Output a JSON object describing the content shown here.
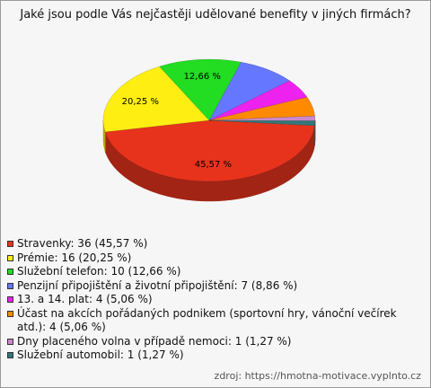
{
  "chart_data": {
    "type": "pie",
    "title": "Jaké jsou podle Vás nejčastěji udělované benefity v jiných firmách?",
    "categories": [
      "Stravenky: 36 (45,57 %)",
      "Prémie: 16 (20,25 %)",
      "Služební telefon: 10 (12,66 %)",
      "Penzijní připojištění a životní připojištění: 7 (8,86 %)",
      "13. a 14. plat: 4 (5,06 %)",
      "Účast na akcích pořádaných podnikem (sportovní hry, vánoční večírek atd.): 4 (5,06 %)",
      "Dny placeného volna v případě nemoci: 1 (1,27 %)",
      "Služební automobil: 1 (1,27 %)"
    ],
    "values": [
      36,
      16,
      10,
      7,
      4,
      4,
      1,
      1
    ],
    "value_labels": [
      "45,57 %",
      "20,25 %",
      "12,66 %",
      null,
      null,
      null,
      null,
      null
    ],
    "colors": [
      "#e8331c",
      "#ffee11",
      "#22dd22",
      "#6677ff",
      "#ee22ee",
      "#ff8a00",
      "#cc88cc",
      "#337777"
    ],
    "source": "zdroj: https://hmotna-motivace.vyplnto.cz"
  }
}
